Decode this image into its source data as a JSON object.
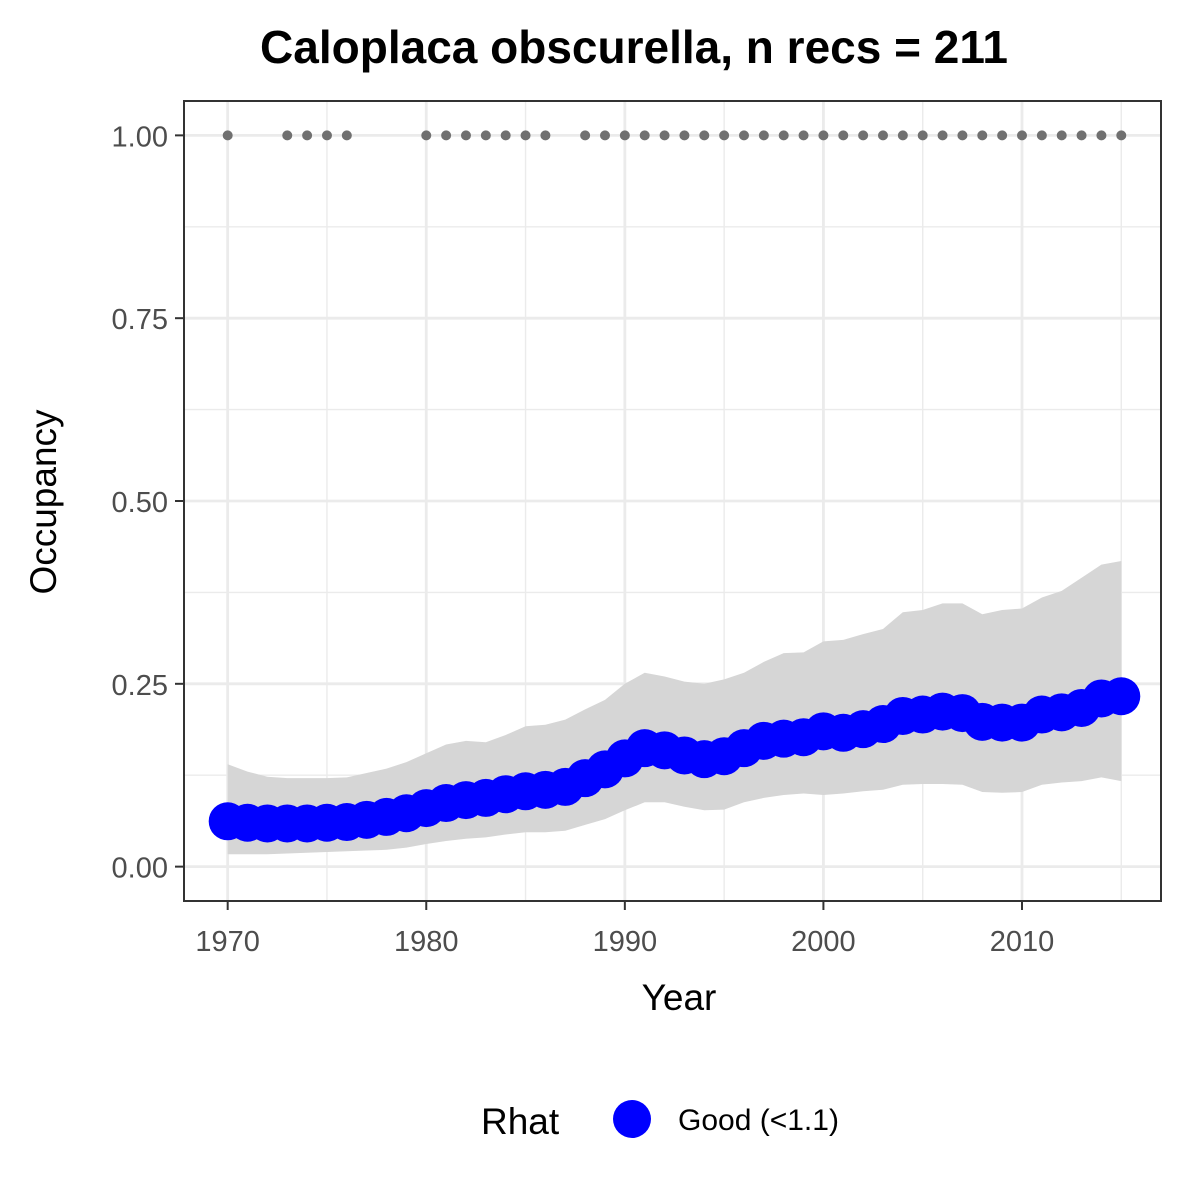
{
  "chart_data": {
    "type": "line",
    "title": "Caloplaca obscurella, n recs = 211",
    "xlabel": "Year",
    "ylabel": "Occupancy",
    "xlim": [
      1967.8,
      1917.0
    ],
    "xticks": [
      "1970",
      "1980",
      "1990",
      "2000",
      "2010"
    ],
    "yticks": [
      "0.00",
      "0.25",
      "0.50",
      "0.75",
      "1.00"
    ],
    "ylim": [
      -0.047,
      1.047
    ],
    "grid": true,
    "legend": {
      "title": "Rhat",
      "placement": "bottom",
      "entries": [
        "Good (<1.1)"
      ]
    },
    "colors": {
      "series": "#0000ff",
      "ribbon": "#d6d6d6",
      "records": "#707070",
      "grid": "#ebebeb",
      "panel_border": "#333333"
    },
    "x": [
      1970,
      1971,
      1972,
      1973,
      1974,
      1975,
      1976,
      1977,
      1978,
      1979,
      1980,
      1981,
      1982,
      1983,
      1984,
      1985,
      1986,
      1987,
      1988,
      1989,
      1990,
      1991,
      1992,
      1993,
      1994,
      1995,
      1996,
      1997,
      1998,
      1999,
      2000,
      2001,
      2002,
      2003,
      2004,
      2005,
      2006,
      2007,
      2008,
      2009,
      2010,
      2011,
      2012,
      2013,
      2014,
      2015
    ],
    "series": [
      {
        "name": "Good (<1.1)",
        "values": [
          0.062,
          0.06,
          0.059,
          0.059,
          0.059,
          0.06,
          0.061,
          0.064,
          0.068,
          0.073,
          0.08,
          0.087,
          0.091,
          0.094,
          0.099,
          0.103,
          0.105,
          0.109,
          0.121,
          0.133,
          0.148,
          0.162,
          0.159,
          0.152,
          0.147,
          0.151,
          0.162,
          0.172,
          0.175,
          0.177,
          0.185,
          0.183,
          0.188,
          0.195,
          0.206,
          0.208,
          0.212,
          0.21,
          0.198,
          0.197,
          0.197,
          0.208,
          0.211,
          0.217,
          0.23,
          0.233
        ],
        "lower": [
          0.017,
          0.017,
          0.017,
          0.018,
          0.019,
          0.02,
          0.021,
          0.022,
          0.023,
          0.026,
          0.031,
          0.035,
          0.038,
          0.04,
          0.044,
          0.047,
          0.047,
          0.049,
          0.057,
          0.065,
          0.077,
          0.088,
          0.088,
          0.082,
          0.077,
          0.078,
          0.088,
          0.094,
          0.098,
          0.1,
          0.098,
          0.1,
          0.103,
          0.105,
          0.112,
          0.113,
          0.113,
          0.112,
          0.102,
          0.101,
          0.102,
          0.112,
          0.115,
          0.117,
          0.122,
          0.117
        ],
        "upper": [
          0.14,
          0.13,
          0.123,
          0.121,
          0.121,
          0.121,
          0.122,
          0.128,
          0.134,
          0.143,
          0.155,
          0.167,
          0.172,
          0.17,
          0.18,
          0.192,
          0.194,
          0.201,
          0.215,
          0.228,
          0.25,
          0.265,
          0.26,
          0.253,
          0.25,
          0.256,
          0.265,
          0.28,
          0.292,
          0.293,
          0.308,
          0.31,
          0.318,
          0.325,
          0.348,
          0.351,
          0.36,
          0.36,
          0.345,
          0.351,
          0.353,
          0.368,
          0.377,
          0.395,
          0.413,
          0.418
        ]
      }
    ],
    "record_years": [
      1970,
      1973,
      1974,
      1975,
      1976,
      1980,
      1981,
      1982,
      1983,
      1984,
      1985,
      1986,
      1988,
      1989,
      1990,
      1991,
      1992,
      1993,
      1994,
      1995,
      1996,
      1997,
      1998,
      1999,
      2000,
      2001,
      2002,
      2003,
      2004,
      2005,
      2006,
      2007,
      2008,
      2009,
      2010,
      2011,
      2012,
      2013,
      2014,
      2015
    ],
    "record_value": 1.0
  }
}
